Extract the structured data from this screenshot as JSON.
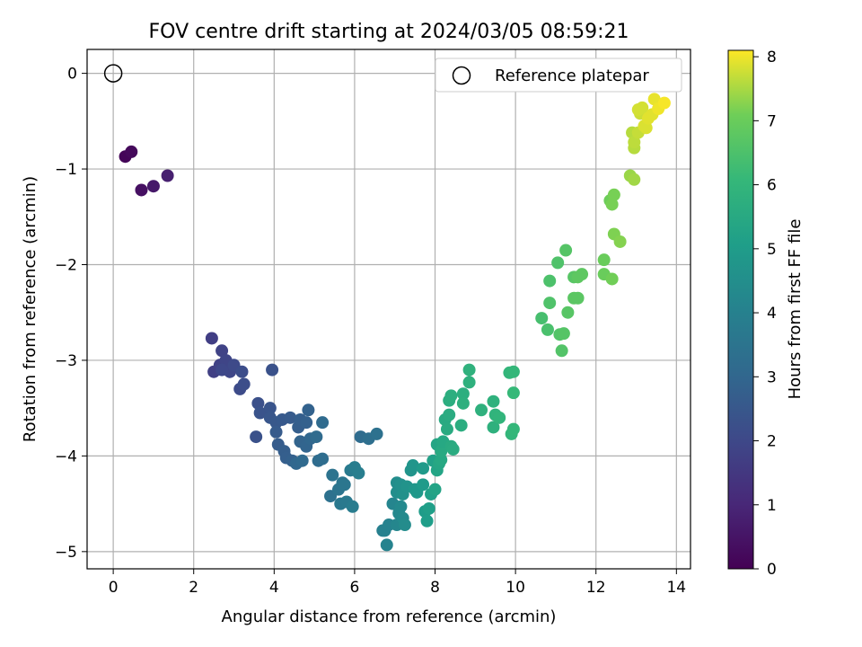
{
  "chart_data": {
    "type": "scatter",
    "title": "FOV centre drift starting at 2024/03/05 08:59:21",
    "xlabel": "Angular distance from reference (arcmin)",
    "ylabel": "Rotation from reference (arcmin)",
    "xlim": [
      -0.65,
      14.35
    ],
    "ylim": [
      -5.18,
      0.25
    ],
    "xticks": [
      0,
      2,
      4,
      6,
      8,
      10,
      12,
      14
    ],
    "yticks": [
      0,
      -1,
      -2,
      -3,
      -4,
      -5
    ],
    "grid": true,
    "colormap": "viridis",
    "colorbar": {
      "label": "Hours from first FF file",
      "range": [
        0,
        8.1
      ],
      "ticks": [
        0,
        1,
        2,
        3,
        4,
        5,
        6,
        7,
        8
      ]
    },
    "legend": {
      "placement": "top-right",
      "entries": [
        {
          "label": "Reference platepar",
          "marker": "open-circle"
        }
      ]
    },
    "reference_point": {
      "x": 0,
      "y": 0
    },
    "points": [
      [
        0.3,
        -0.87,
        0.1
      ],
      [
        0.45,
        -0.82,
        0.2
      ],
      [
        0.7,
        -1.22,
        0.4
      ],
      [
        1.0,
        -1.18,
        0.6
      ],
      [
        1.35,
        -1.07,
        0.8
      ],
      [
        2.45,
        -2.77,
        1.7
      ],
      [
        2.5,
        -3.12,
        1.75
      ],
      [
        2.65,
        -3.05,
        1.8
      ],
      [
        2.7,
        -2.9,
        1.85
      ],
      [
        2.8,
        -3.0,
        1.9
      ],
      [
        2.9,
        -3.12,
        1.95
      ],
      [
        2.7,
        -3.1,
        2.0
      ],
      [
        3.0,
        -3.05,
        2.05
      ],
      [
        3.15,
        -3.3,
        2.1
      ],
      [
        3.2,
        -3.12,
        2.15
      ],
      [
        3.25,
        -3.25,
        2.2
      ],
      [
        3.6,
        -3.45,
        2.25
      ],
      [
        3.55,
        -3.8,
        2.3
      ],
      [
        3.65,
        -3.55,
        2.35
      ],
      [
        3.9,
        -3.5,
        2.4
      ],
      [
        3.95,
        -3.1,
        2.3
      ],
      [
        3.9,
        -3.6,
        2.45
      ],
      [
        4.05,
        -3.65,
        2.5
      ],
      [
        4.2,
        -3.62,
        2.55
      ],
      [
        4.05,
        -3.75,
        2.6
      ],
      [
        4.1,
        -3.88,
        2.65
      ],
      [
        4.25,
        -3.95,
        2.7
      ],
      [
        4.3,
        -4.02,
        2.75
      ],
      [
        4.45,
        -4.05,
        2.8
      ],
      [
        4.4,
        -3.6,
        2.6
      ],
      [
        4.6,
        -3.7,
        2.7
      ],
      [
        4.65,
        -3.62,
        2.75
      ],
      [
        4.8,
        -3.65,
        2.8
      ],
      [
        4.85,
        -3.52,
        2.85
      ],
      [
        4.65,
        -3.85,
        2.9
      ],
      [
        4.8,
        -3.9,
        2.95
      ],
      [
        4.9,
        -3.82,
        3.0
      ],
      [
        4.55,
        -4.08,
        3.05
      ],
      [
        4.7,
        -4.05,
        3.1
      ],
      [
        5.05,
        -3.8,
        3.15
      ],
      [
        5.1,
        -4.05,
        3.2
      ],
      [
        5.2,
        -4.03,
        3.25
      ],
      [
        5.2,
        -3.65,
        3.15
      ],
      [
        5.4,
        -4.42,
        3.4
      ],
      [
        5.45,
        -4.2,
        3.45
      ],
      [
        5.6,
        -4.35,
        3.5
      ],
      [
        5.7,
        -4.28,
        3.55
      ],
      [
        5.75,
        -4.3,
        3.6
      ],
      [
        5.65,
        -4.5,
        3.65
      ],
      [
        5.8,
        -4.48,
        3.7
      ],
      [
        5.9,
        -4.15,
        3.75
      ],
      [
        5.95,
        -4.53,
        3.8
      ],
      [
        6.0,
        -4.12,
        3.85
      ],
      [
        6.1,
        -4.18,
        3.9
      ],
      [
        6.15,
        -3.8,
        3.2
      ],
      [
        6.35,
        -3.82,
        3.3
      ],
      [
        6.55,
        -3.77,
        3.4
      ],
      [
        6.7,
        -4.78,
        3.95
      ],
      [
        6.75,
        -4.78,
        4.0
      ],
      [
        6.85,
        -4.72,
        4.05
      ],
      [
        6.8,
        -4.93,
        4.1
      ],
      [
        6.95,
        -4.5,
        4.15
      ],
      [
        7.05,
        -4.72,
        4.2
      ],
      [
        7.1,
        -4.6,
        4.25
      ],
      [
        7.15,
        -4.53,
        4.3
      ],
      [
        7.2,
        -4.65,
        4.35
      ],
      [
        7.25,
        -4.72,
        4.4
      ],
      [
        7.05,
        -4.28,
        4.45
      ],
      [
        7.05,
        -4.38,
        4.5
      ],
      [
        7.15,
        -4.3,
        4.55
      ],
      [
        7.2,
        -4.4,
        4.6
      ],
      [
        7.3,
        -4.32,
        4.65
      ],
      [
        7.4,
        -4.15,
        4.7
      ],
      [
        7.45,
        -4.1,
        4.75
      ],
      [
        7.5,
        -4.35,
        4.8
      ],
      [
        7.55,
        -4.38,
        4.85
      ],
      [
        7.7,
        -4.13,
        4.9
      ],
      [
        7.7,
        -4.3,
        4.95
      ],
      [
        7.75,
        -4.58,
        5.0
      ],
      [
        7.8,
        -4.68,
        5.05
      ],
      [
        7.85,
        -4.55,
        5.1
      ],
      [
        7.9,
        -4.4,
        5.15
      ],
      [
        7.95,
        -4.05,
        5.2
      ],
      [
        8.0,
        -4.35,
        5.25
      ],
      [
        8.05,
        -4.15,
        5.3
      ],
      [
        8.05,
        -3.88,
        5.35
      ],
      [
        8.1,
        -4.08,
        5.4
      ],
      [
        8.15,
        -4.04,
        5.45
      ],
      [
        8.15,
        -3.95,
        5.5
      ],
      [
        8.2,
        -3.85,
        5.45
      ],
      [
        8.25,
        -3.62,
        5.5
      ],
      [
        8.3,
        -3.72,
        5.55
      ],
      [
        8.35,
        -3.57,
        5.6
      ],
      [
        8.35,
        -3.42,
        5.65
      ],
      [
        8.4,
        -3.37,
        5.7
      ],
      [
        8.4,
        -3.9,
        5.55
      ],
      [
        8.45,
        -3.93,
        5.6
      ],
      [
        8.65,
        -3.68,
        5.65
      ],
      [
        8.7,
        -3.35,
        5.7
      ],
      [
        8.7,
        -3.45,
        5.75
      ],
      [
        8.85,
        -3.23,
        5.8
      ],
      [
        8.85,
        -3.1,
        5.85
      ],
      [
        9.15,
        -3.52,
        5.8
      ],
      [
        9.45,
        -3.43,
        5.85
      ],
      [
        9.45,
        -3.7,
        5.8
      ],
      [
        9.5,
        -3.57,
        5.9
      ],
      [
        9.6,
        -3.6,
        5.95
      ],
      [
        9.85,
        -3.13,
        6.0
      ],
      [
        9.95,
        -3.12,
        6.05
      ],
      [
        9.9,
        -3.77,
        6.0
      ],
      [
        9.95,
        -3.72,
        6.05
      ],
      [
        9.95,
        -3.34,
        6.1
      ],
      [
        10.65,
        -2.56,
        6.4
      ],
      [
        10.8,
        -2.68,
        6.45
      ],
      [
        10.85,
        -2.17,
        6.5
      ],
      [
        10.85,
        -2.4,
        6.55
      ],
      [
        11.05,
        -1.98,
        6.55
      ],
      [
        11.1,
        -2.73,
        6.6
      ],
      [
        11.15,
        -2.9,
        6.6
      ],
      [
        11.2,
        -2.72,
        6.65
      ],
      [
        11.25,
        -1.85,
        6.65
      ],
      [
        11.3,
        -2.5,
        6.7
      ],
      [
        11.45,
        -2.13,
        6.7
      ],
      [
        11.45,
        -2.35,
        6.75
      ],
      [
        11.55,
        -2.35,
        6.75
      ],
      [
        11.65,
        -2.1,
        6.8
      ],
      [
        11.55,
        -2.13,
        6.8
      ],
      [
        12.2,
        -1.95,
        7.0
      ],
      [
        12.2,
        -2.1,
        7.0
      ],
      [
        12.35,
        -1.33,
        7.05
      ],
      [
        12.4,
        -2.15,
        7.1
      ],
      [
        12.4,
        -1.37,
        7.15
      ],
      [
        12.45,
        -1.27,
        7.15
      ],
      [
        12.45,
        -1.68,
        7.2
      ],
      [
        12.6,
        -1.76,
        7.25
      ],
      [
        12.85,
        -1.07,
        7.4
      ],
      [
        12.95,
        -1.11,
        7.45
      ],
      [
        12.9,
        -0.62,
        7.6
      ],
      [
        12.95,
        -0.78,
        7.6
      ],
      [
        12.95,
        -0.72,
        7.65
      ],
      [
        13.05,
        -0.62,
        7.7
      ],
      [
        13.1,
        -0.42,
        7.75
      ],
      [
        13.05,
        -0.38,
        7.8
      ],
      [
        13.15,
        -0.36,
        7.8
      ],
      [
        13.2,
        -0.55,
        7.85
      ],
      [
        13.25,
        -0.57,
        7.85
      ],
      [
        13.3,
        -0.47,
        7.9
      ],
      [
        13.4,
        -0.43,
        7.9
      ],
      [
        13.45,
        -0.27,
        7.95
      ],
      [
        13.55,
        -0.37,
        8.0
      ],
      [
        13.7,
        -0.31,
        8.05
      ]
    ]
  }
}
